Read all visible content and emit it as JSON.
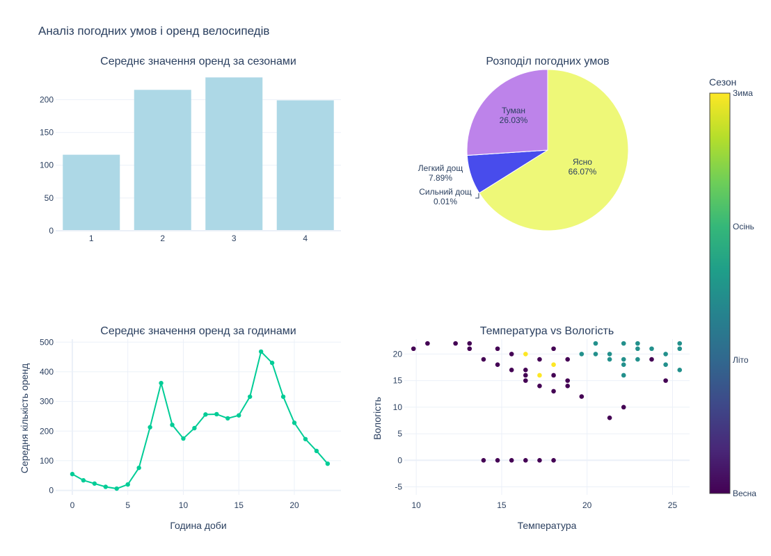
{
  "title": "Аналіз погодних умов і оренд велосипедів",
  "colors": {
    "bar": "#add8e6",
    "line": "#00cc96",
    "pie": [
      "#eef878",
      "#484cec",
      "#333333",
      "#bd83ea"
    ],
    "viridis": [
      "#440154",
      "#482878",
      "#3e4989",
      "#31688e",
      "#26828e",
      "#1f9e89",
      "#35b779",
      "#6ece58",
      "#b5de2b",
      "#fde725"
    ]
  },
  "chart_data": [
    {
      "type": "bar",
      "title": "Середнє значення оренд за сезонами",
      "categories": [
        "1",
        "2",
        "3",
        "4"
      ],
      "values": [
        116,
        215,
        234,
        199
      ],
      "xlabel": "",
      "ylabel": "",
      "ylim": [
        0,
        245
      ],
      "yticks": [
        0,
        50,
        100,
        150,
        200
      ],
      "grid": true
    },
    {
      "type": "pie",
      "title": "Розподіл погодних умов",
      "slices": [
        {
          "label": "Ясно",
          "percent": "66.07%",
          "value": 66.07
        },
        {
          "label": "Легкий дощ",
          "percent": "7.89%",
          "value": 7.89
        },
        {
          "label": "Сильний дощ",
          "percent": "0.01%",
          "value": 0.01
        },
        {
          "label": "Туман",
          "percent": "26.03%",
          "value": 26.03
        }
      ]
    },
    {
      "type": "line",
      "title": "Середнє значення оренд за годинами",
      "xlabel": "Година доби",
      "ylabel": "Середня кількість оренд",
      "x": [
        0,
        1,
        2,
        3,
        4,
        5,
        6,
        7,
        8,
        9,
        10,
        11,
        12,
        13,
        14,
        15,
        16,
        17,
        18,
        19,
        20,
        21,
        22,
        23
      ],
      "y": [
        55,
        34,
        23,
        12,
        6,
        20,
        76,
        213,
        362,
        221,
        175,
        210,
        256,
        257,
        243,
        253,
        316,
        468,
        430,
        316,
        228,
        173,
        133,
        90
      ],
      "xlim": [
        -1.5,
        24.2
      ],
      "ylim": [
        -15,
        510
      ],
      "xticks": [
        0,
        5,
        10,
        15,
        20
      ],
      "yticks": [
        0,
        100,
        200,
        300,
        400,
        500
      ],
      "grid": true
    },
    {
      "type": "scatter",
      "title": "Температура vs Вологість",
      "xlabel": "Температура",
      "ylabel": "Вологість",
      "xlim": [
        9.3,
        26.0
      ],
      "ylim": [
        -6.5,
        22.8
      ],
      "xticks": [
        10,
        15,
        20,
        25
      ],
      "yticks": [
        -5,
        0,
        5,
        10,
        15,
        20
      ],
      "grid": true,
      "colorbar": {
        "title": "Сезон",
        "ticks": [
          {
            "label": "Весна",
            "value": 1
          },
          {
            "label": "Літо",
            "value": 2
          },
          {
            "label": "Осінь",
            "value": 3
          },
          {
            "label": "Зима",
            "value": 4
          }
        ],
        "range": [
          1,
          4
        ]
      },
      "points": [
        [
          9.84,
          21,
          1
        ],
        [
          10.66,
          22,
          1
        ],
        [
          12.3,
          22,
          1
        ],
        [
          13.12,
          22,
          1
        ],
        [
          13.12,
          21,
          1
        ],
        [
          14.76,
          21,
          1
        ],
        [
          13.94,
          19,
          1
        ],
        [
          14.76,
          18,
          1
        ],
        [
          15.58,
          20,
          1
        ],
        [
          15.58,
          17,
          1
        ],
        [
          16.4,
          17,
          1
        ],
        [
          16.4,
          16,
          1
        ],
        [
          16.4,
          15,
          1
        ],
        [
          17.22,
          19,
          1
        ],
        [
          17.22,
          14,
          1
        ],
        [
          18.04,
          21,
          1
        ],
        [
          18.04,
          16,
          1
        ],
        [
          18.04,
          13,
          1
        ],
        [
          18.86,
          19,
          1
        ],
        [
          18.86,
          15,
          1
        ],
        [
          18.86,
          14,
          1
        ],
        [
          19.68,
          12,
          1
        ],
        [
          21.32,
          8,
          1
        ],
        [
          22.14,
          10,
          1
        ],
        [
          23.78,
          19,
          1
        ],
        [
          24.6,
          15,
          1
        ],
        [
          13.94,
          0,
          1
        ],
        [
          14.76,
          0,
          1
        ],
        [
          15.58,
          0,
          1
        ],
        [
          16.4,
          0,
          1
        ],
        [
          17.22,
          0,
          1
        ],
        [
          18.04,
          0,
          1
        ],
        [
          16.4,
          20,
          4
        ],
        [
          18.04,
          18,
          4
        ],
        [
          17.22,
          16,
          4
        ],
        [
          19.68,
          20,
          2.5
        ],
        [
          20.5,
          22,
          2.5
        ],
        [
          20.5,
          20,
          2.5
        ],
        [
          21.32,
          20,
          2.5
        ],
        [
          21.32,
          19,
          2.5
        ],
        [
          22.14,
          22,
          2.5
        ],
        [
          22.14,
          19,
          2.5
        ],
        [
          22.14,
          18,
          2.5
        ],
        [
          22.14,
          16,
          2.5
        ],
        [
          22.96,
          22,
          2.5
        ],
        [
          22.96,
          21,
          2.5
        ],
        [
          22.96,
          19,
          2.5
        ],
        [
          23.78,
          21,
          2.5
        ],
        [
          24.6,
          20,
          2.5
        ],
        [
          24.6,
          18,
          2.5
        ],
        [
          25.42,
          22,
          2.5
        ],
        [
          25.42,
          21,
          2.5
        ],
        [
          25.42,
          17,
          2.5
        ]
      ]
    }
  ]
}
